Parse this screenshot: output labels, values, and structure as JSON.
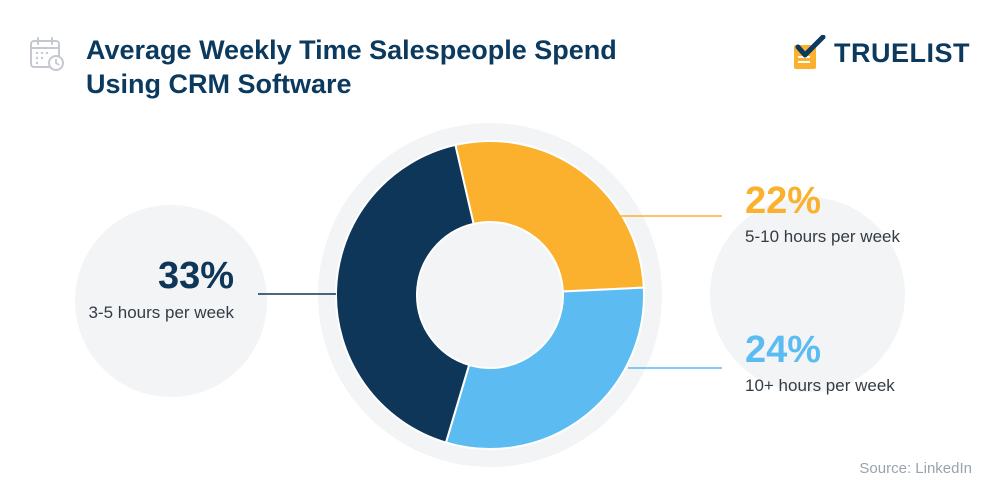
{
  "header": {
    "title_line1": "Average Weekly Time Salespeople Spend",
    "title_line2": "Using CRM Software",
    "title_icon": "calendar-clock-icon",
    "brand_name": "TRUELIST",
    "brand_icon": "checklist-logo-icon"
  },
  "colors": {
    "title": "#0b3a5e",
    "navy": "#0d3659",
    "orange": "#fbb12e",
    "light_blue": "#5cbcf2",
    "background_circle": "#f3f4f6"
  },
  "chart_data": {
    "type": "pie",
    "variant": "donut",
    "title": "Average Weekly Time Salespeople Spend Using CRM Software",
    "slices": [
      {
        "label": "3-5 hours per week",
        "value": 33,
        "display": "33%",
        "color": "#0d3659"
      },
      {
        "label": "5-10 hours per week",
        "value": 22,
        "display": "22%",
        "color": "#fbb12e"
      },
      {
        "label": "10+ hours per week",
        "value": 24,
        "display": "24%",
        "color": "#5cbcf2"
      }
    ]
  },
  "footer": {
    "source": "Source: LinkedIn"
  }
}
